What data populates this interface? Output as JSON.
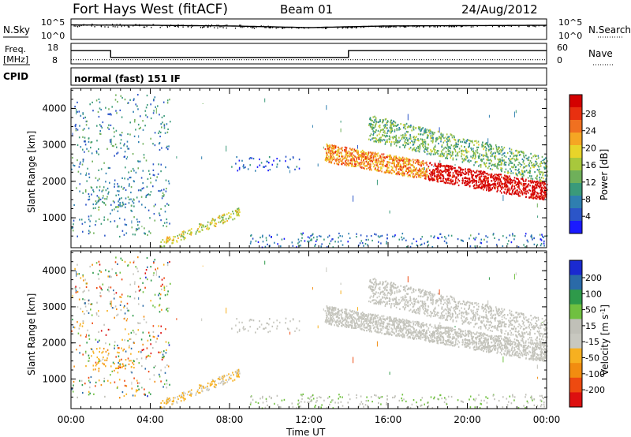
{
  "header": {
    "station": "Fort Hays West (fitACF)",
    "beam": "Beam 01",
    "date": "24/Aug/2012"
  },
  "noise_panel": {
    "left_label": "N.Sky",
    "right_label": "N.Search",
    "left_ticks": [
      "10^5",
      "10^0"
    ],
    "right_ticks": [
      "10^5",
      "10^0"
    ],
    "log_range": [
      0,
      5
    ],
    "sky_level_log": [
      3.9,
      3.8,
      3.6,
      3.1,
      3.6,
      3.7,
      3.8
    ]
  },
  "freq_panel": {
    "left_label_1": "Freq.",
    "left_label_2": "[MHz]",
    "right_label": "Nave",
    "left_ticks": [
      "18",
      "8"
    ],
    "right_ticks": [
      "60",
      "0"
    ],
    "freq_mhz_steps": [
      {
        "from": "00:00",
        "to": "02:00",
        "value": 14.9
      },
      {
        "from": "02:00",
        "to": "14:00",
        "value": 10.6
      },
      {
        "from": "14:00",
        "to": "24:00",
        "value": 14.9
      }
    ],
    "nave": 7
  },
  "cpid": {
    "label": "CPID",
    "program": "normal (fast) 151 IF"
  },
  "power_panel": {
    "ylabel": "Slant Range [km]",
    "yticks": [
      "4000",
      "3000",
      "2000",
      "1000"
    ],
    "colorbar_label": "Power [dB]",
    "colorbar_ticks": [
      "28",
      "24",
      "20",
      "16",
      "12",
      "8",
      "4"
    ]
  },
  "velocity_panel": {
    "ylabel": "Slant Range [km]",
    "yticks": [
      "4000",
      "3000",
      "2000",
      "1000"
    ],
    "colorbar_label": "Velocity [m s",
    "colorbar_label_sup": "-1",
    "colorbar_label_end": "]",
    "colorbar_ticks": [
      "200",
      "100",
      "50",
      "15",
      "-15",
      "-50",
      "-100",
      "-200"
    ]
  },
  "x_axis": {
    "label": "Time UT",
    "ticks": [
      "00:00",
      "04:00",
      "08:00",
      "12:00",
      "16:00",
      "20:00",
      "00:00"
    ]
  },
  "chart_data": {
    "type": "heatmap",
    "x_units": "hours UT",
    "xlim": [
      0,
      24
    ],
    "ylim_km": [
      180,
      4550
    ],
    "power_scale_db": [
      0,
      30
    ],
    "velocity_scale_ms": [
      -250,
      250
    ],
    "power_colors": [
      "#1a1aff",
      "#2b55c8",
      "#2f7fb0",
      "#3a9a7a",
      "#6fb05a",
      "#a8c83c",
      "#e8d42a",
      "#f5a623",
      "#f07020",
      "#e83010",
      "#d40000"
    ],
    "velocity_colors": [
      "#dd1010",
      "#ee4a10",
      "#f28c10",
      "#f7b020",
      "#c8c8c0",
      "#c0c0b8",
      "#70c040",
      "#2e9a4a",
      "#2a6aa8",
      "#1a2ad0"
    ],
    "echo_regions": [
      {
        "name": "morning-scatter",
        "t": [
          0.0,
          5.0
        ],
        "range_km": [
          500,
          4400
        ],
        "power_db": 8,
        "velocity": -5
      },
      {
        "name": "near-range-E",
        "t": [
          4.5,
          8.5
        ],
        "range_km": [
          200,
          1300
        ],
        "power_db": 16,
        "velocity": -60
      },
      {
        "name": "mid-blob",
        "t": [
          1.0,
          3.2
        ],
        "range_km": [
          1200,
          1900
        ],
        "power_db": 10,
        "velocity": -80
      },
      {
        "name": "12UT-patches",
        "t": [
          8.0,
          11.5
        ],
        "range_km": [
          2300,
          2700
        ],
        "power_db": 5,
        "velocity": 0
      },
      {
        "name": "evening-band-1",
        "t": [
          12.8,
          24.0
        ],
        "range_km": [
          1300,
          3000
        ],
        "power_db": 22,
        "velocity": -5
      },
      {
        "name": "evening-band-2",
        "t": [
          15.0,
          24.0
        ],
        "range_km": [
          1700,
          3800
        ],
        "power_db": 12,
        "velocity": 0
      },
      {
        "name": "near-range-evening",
        "t": [
          9.0,
          24.0
        ],
        "range_km": [
          200,
          600
        ],
        "power_db": 6,
        "velocity": 40
      }
    ]
  }
}
